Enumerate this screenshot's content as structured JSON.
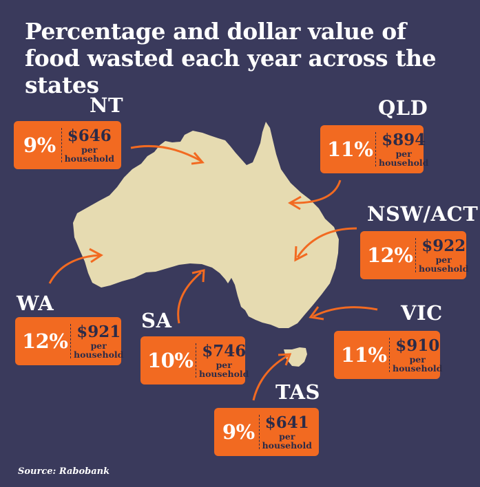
{
  "title": "Percentage and dollar value of food wasted each year across the states",
  "source": "Source: Rabobank",
  "colors": {
    "background": "#3a3a5c",
    "card": "#f26a21",
    "map": "#e6dbb1",
    "arrow": "#f26a21",
    "value_text": "#2b2b48"
  },
  "chart_data": {
    "type": "table",
    "title": "Percentage and dollar value of food wasted each year across the states",
    "states": [
      {
        "state": "NT",
        "percent": "9%",
        "value": "$646",
        "per": "per",
        "unit": "household"
      },
      {
        "state": "QLD",
        "percent": "11%",
        "value": "$894",
        "per": "per",
        "unit": "household"
      },
      {
        "state": "NSW/ACT",
        "percent": "12%",
        "value": "$922",
        "per": "per",
        "unit": "household"
      },
      {
        "state": "WA",
        "percent": "12%",
        "value": "$921",
        "per": "per",
        "unit": "household"
      },
      {
        "state": "SA",
        "percent": "10%",
        "value": "$746",
        "per": "per",
        "unit": "household"
      },
      {
        "state": "VIC",
        "percent": "11%",
        "value": "$910",
        "per": "per",
        "unit": "household"
      },
      {
        "state": "TAS",
        "percent": "9%",
        "value": "$641",
        "per": "per",
        "unit": "household"
      }
    ]
  }
}
